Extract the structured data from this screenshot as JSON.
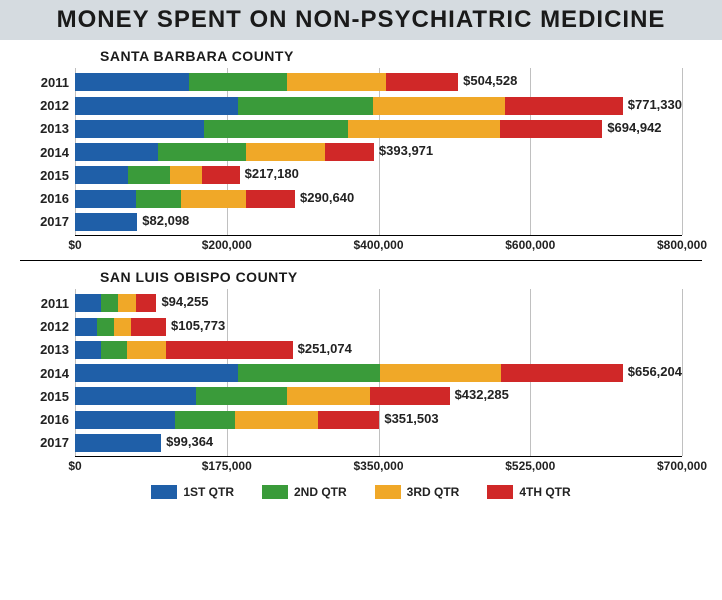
{
  "title": "MONEY SPENT ON NON-PSYCHIATRIC MEDICINE",
  "colors": {
    "q1": "#1f5fa8",
    "q2": "#3a9b3a",
    "q3": "#f0a828",
    "q4": "#d02828",
    "grid": "#c0c0c0",
    "title_bg": "#d5dbe0"
  },
  "legend": [
    {
      "label": "1ST QTR",
      "color": "#1f5fa8"
    },
    {
      "label": "2ND QTR",
      "color": "#3a9b3a"
    },
    {
      "label": "3RD QTR",
      "color": "#f0a828"
    },
    {
      "label": "4TH QTR",
      "color": "#d02828"
    }
  ],
  "charts": [
    {
      "subtitle": "SANTA BARBARA COUNTY",
      "xmax": 800000,
      "xticks": [
        0,
        200000,
        400000,
        600000,
        800000
      ],
      "xtick_labels": [
        "$0",
        "$200,000",
        "$400,000",
        "$600,000",
        "$800,000"
      ],
      "years": [
        "2011",
        "2012",
        "2013",
        "2014",
        "2015",
        "2016",
        "2017"
      ],
      "totals_text": [
        "$504,528",
        "$771,330",
        "$694,942",
        "$393,971",
        "$217,180",
        "$290,640",
        "$82,098"
      ],
      "series": [
        [
          150000,
          130000,
          130000,
          95000
        ],
        [
          230000,
          190000,
          185000,
          166000
        ],
        [
          170000,
          190000,
          200000,
          135000
        ],
        [
          110000,
          115000,
          105000,
          64000
        ],
        [
          70000,
          55000,
          42000,
          50000
        ],
        [
          80000,
          60000,
          85000,
          65000
        ],
        [
          82098,
          0,
          0,
          0
        ]
      ]
    },
    {
      "subtitle": "SAN LUIS OBISPO COUNTY",
      "xmax": 700000,
      "xticks": [
        0,
        175000,
        350000,
        525000,
        700000
      ],
      "xtick_labels": [
        "$0",
        "$175,000",
        "$350,000",
        "$525,000",
        "$700,000"
      ],
      "years": [
        "2011",
        "2012",
        "2013",
        "2014",
        "2015",
        "2016",
        "2017"
      ],
      "totals_text": [
        "$94,255",
        "$105,773",
        "$251,074",
        "$656,204",
        "$432,285",
        "$351,503",
        "$99,364"
      ],
      "series": [
        [
          30000,
          20000,
          20000,
          24000
        ],
        [
          25000,
          20000,
          20000,
          40000
        ],
        [
          30000,
          30000,
          45000,
          146000
        ],
        [
          195000,
          170000,
          145000,
          146000
        ],
        [
          140000,
          105000,
          95000,
          92000
        ],
        [
          115000,
          70000,
          95000,
          71000
        ],
        [
          99364,
          0,
          0,
          0
        ]
      ]
    }
  ]
}
